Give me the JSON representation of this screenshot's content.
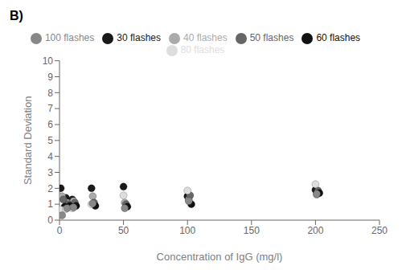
{
  "chart_data": {
    "type": "scatter",
    "title": "B)",
    "xlabel": "Concentration of IgG (mg/l)",
    "ylabel": "Standard Deviation",
    "xlim": [
      0,
      250
    ],
    "ylim": [
      0,
      10
    ],
    "xticks": [
      0,
      50,
      100,
      150,
      200,
      250
    ],
    "yticks": [
      0,
      1,
      2,
      3,
      4,
      5,
      6,
      7,
      8,
      9,
      10
    ],
    "grid": false,
    "legend": "top",
    "series": [
      {
        "name": "30 flashes",
        "color": "#1a1a1a",
        "x": [
          1,
          5,
          10,
          25,
          50,
          100,
          200
        ],
        "values": [
          2.0,
          1.4,
          1.3,
          2.0,
          2.1,
          1.5,
          1.9
        ]
      },
      {
        "name": "40 flashes",
        "color": "#aaaaaa",
        "x": [
          2,
          6,
          11,
          26,
          51,
          101,
          201
        ],
        "values": [
          1.5,
          1.1,
          1.2,
          1.5,
          1.1,
          1.3,
          1.6
        ]
      },
      {
        "name": "50 flashes",
        "color": "#666666",
        "x": [
          3,
          7,
          12,
          27,
          52,
          102,
          202
        ],
        "values": [
          1.3,
          1.0,
          1.1,
          1.1,
          1.0,
          1.55,
          1.85
        ]
      },
      {
        "name": "60 flashes",
        "color": "#111111",
        "x": [
          4,
          8,
          13,
          28,
          53,
          103,
          203
        ],
        "values": [
          0.85,
          0.9,
          0.9,
          0.9,
          0.85,
          1.0,
          1.7
        ]
      },
      {
        "name": "80 flashes",
        "color": "#dddddd",
        "x": [
          1,
          5,
          10,
          25,
          50,
          100,
          200
        ],
        "values": [
          0.65,
          0.7,
          0.75,
          1.0,
          1.55,
          1.85,
          2.25
        ]
      },
      {
        "name": "100 flashes",
        "color": "#888888",
        "x": [
          2,
          6,
          11,
          26,
          51,
          101,
          201
        ],
        "values": [
          0.3,
          0.75,
          0.8,
          1.05,
          0.75,
          1.2,
          1.65
        ]
      }
    ]
  }
}
